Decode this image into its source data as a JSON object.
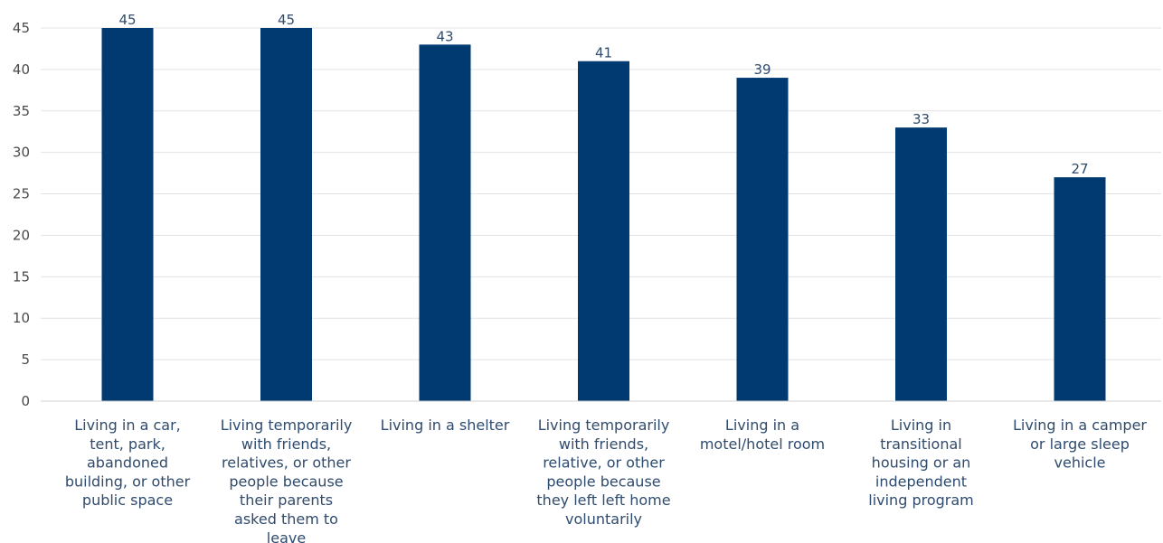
{
  "chart_data": {
    "type": "bar",
    "title": "",
    "xlabel": "",
    "ylabel": "",
    "ylim": [
      0,
      45
    ],
    "yticks": [
      0,
      5,
      10,
      15,
      20,
      25,
      30,
      35,
      40,
      45
    ],
    "grid": true,
    "legend": "none",
    "bar_color": "#003a70",
    "categories": [
      "Living in a car, tent, park, abandoned building, or other public space",
      "Living temporarily with friends, relatives, or other people because their parents asked them to leave",
      "Living in a shelter",
      "Living temporarily with friends, relative, or other people because they left left home voluntarily",
      "Living in a motel/hotel room",
      "Living in transitional housing or an independent living program",
      "Living in a camper or large sleep vehicle"
    ],
    "category_lines": [
      [
        "Living in a car,",
        "tent, park,",
        "abandoned",
        "building, or other",
        "public space"
      ],
      [
        "Living temporarily",
        "with friends,",
        "relatives, or other",
        "people because",
        "their parents",
        "asked them to",
        "leave"
      ],
      [
        "Living in a shelter"
      ],
      [
        "Living temporarily",
        "with friends,",
        "relative, or other",
        "people because",
        "they left left home",
        "voluntarily"
      ],
      [
        "Living in a",
        "motel/hotel room"
      ],
      [
        "Living in",
        "transitional",
        "housing or an",
        "independent",
        "living program"
      ],
      [
        "Living in a camper",
        "or large sleep",
        "vehicle"
      ]
    ],
    "values": [
      45,
      45,
      43,
      41,
      39,
      33,
      27
    ]
  }
}
